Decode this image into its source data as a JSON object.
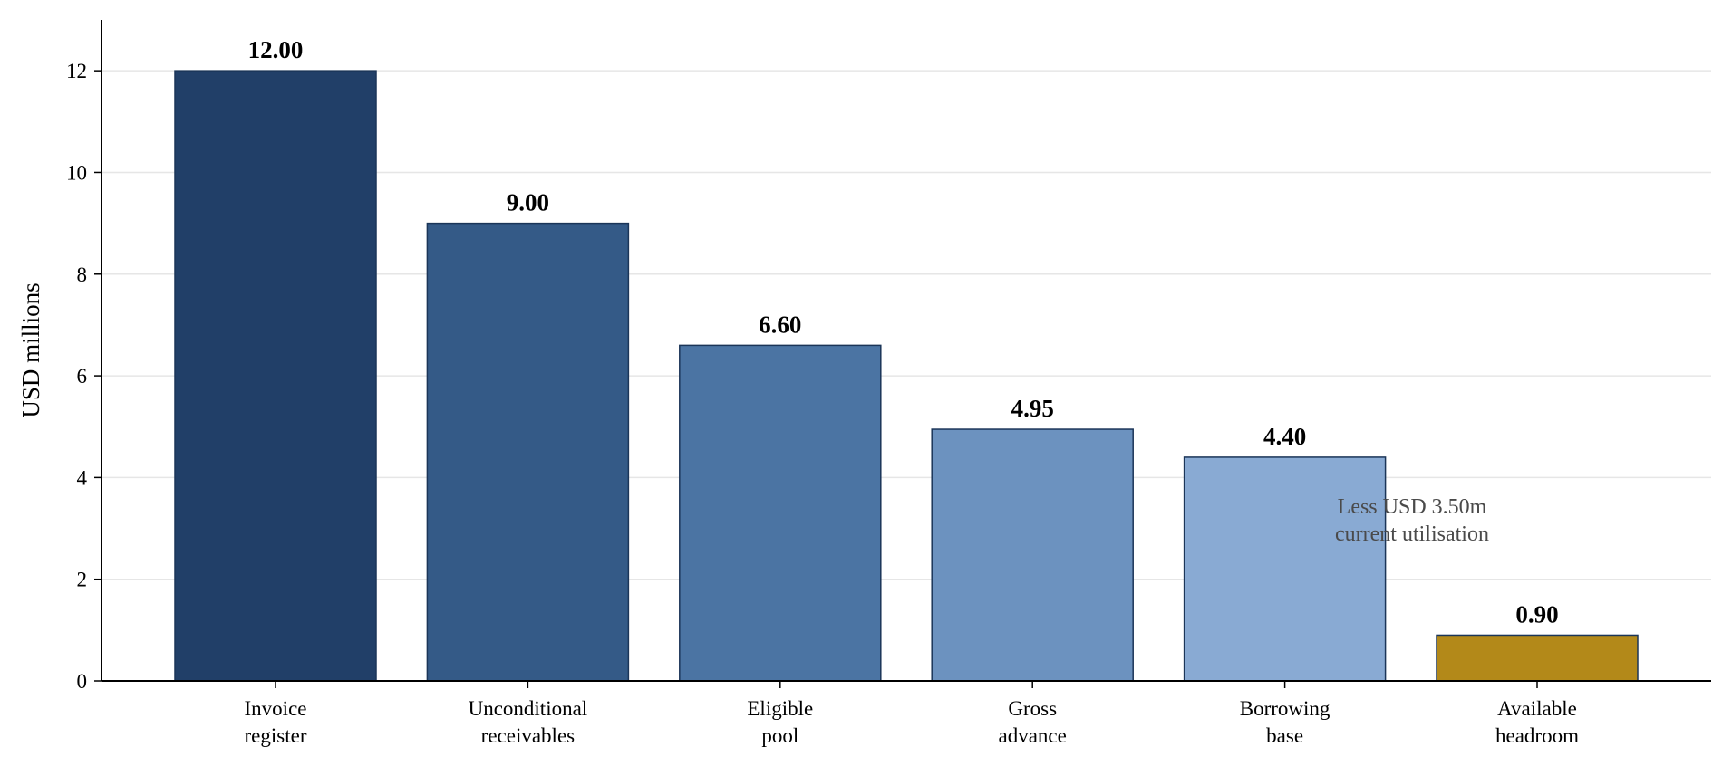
{
  "chart_data": {
    "type": "bar",
    "title": "",
    "xlabel": "",
    "ylabel": "USD millions",
    "ylim": [
      0,
      13
    ],
    "yticks": [
      0,
      2,
      4,
      6,
      8,
      10,
      12
    ],
    "grid": "horizontal",
    "legend": "none",
    "categories": [
      [
        "Invoice",
        "register"
      ],
      [
        "Unconditional",
        "receivables"
      ],
      [
        "Eligible",
        "pool"
      ],
      [
        "Gross",
        "advance"
      ],
      [
        "Borrowing",
        "base"
      ],
      [
        "Available",
        "headroom"
      ]
    ],
    "values": [
      12.0,
      9.0,
      6.6,
      4.95,
      4.4,
      0.9
    ],
    "value_labels": [
      "12.00",
      "9.00",
      "6.60",
      "4.95",
      "4.40",
      "0.90"
    ],
    "colors": [
      "#213f68",
      "#345a87",
      "#4b74a3",
      "#6c92bf",
      "#89aad3",
      "#b38919"
    ],
    "edge_color": "#1b3558",
    "annotation": {
      "lines": [
        "Less USD 3.50m",
        "current utilisation"
      ]
    }
  }
}
